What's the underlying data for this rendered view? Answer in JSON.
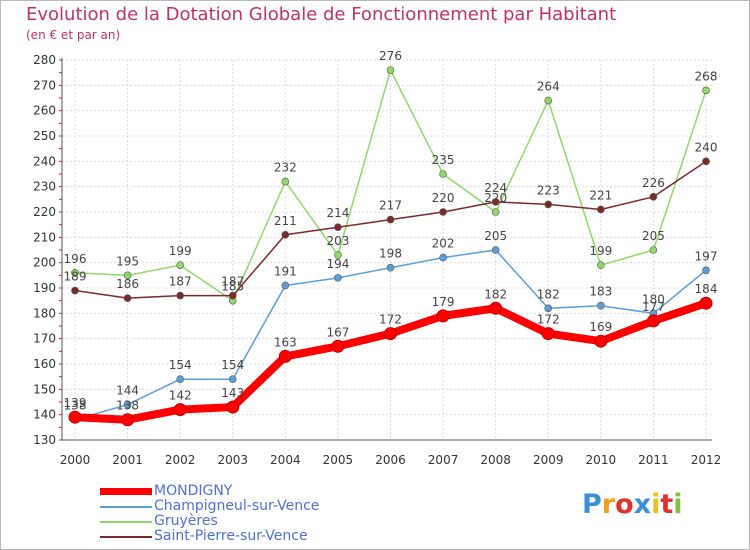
{
  "chart_data": {
    "type": "line",
    "title": "Evolution de la Dotation Globale de Fonctionnement par Habitant",
    "subtitle": "(en € et par an)",
    "x": [
      "2000",
      "2001",
      "2002",
      "2003",
      "2004",
      "2005",
      "2006",
      "2007",
      "2008",
      "2009",
      "2010",
      "2011",
      "2012"
    ],
    "ylim": [
      130,
      280
    ],
    "yticks": [
      130,
      140,
      150,
      160,
      170,
      180,
      190,
      200,
      210,
      220,
      230,
      240,
      250,
      260,
      270,
      280
    ],
    "grid": true,
    "legend_position": "bottom-left",
    "series": [
      {
        "name": "MONDIGNY",
        "color": "#ff0000",
        "values": [
          139,
          138,
          142,
          143,
          163,
          167,
          172,
          179,
          182,
          172,
          169,
          177,
          184
        ],
        "labels": [
          "139",
          "138",
          "142",
          "143",
          "163",
          "167",
          "172",
          "179",
          "182",
          "172",
          "169",
          "177",
          "184"
        ]
      },
      {
        "name": "Champigneul-sur-Vence",
        "color": "#5e9ed6",
        "values": [
          138,
          144,
          154,
          154,
          191,
          194,
          198,
          202,
          205,
          182,
          183,
          180,
          197
        ],
        "labels": [
          "138",
          "144",
          "154",
          "154",
          "191",
          "194",
          "198",
          "202",
          "205",
          "182",
          "183",
          "180",
          "197"
        ]
      },
      {
        "name": "Gruyères",
        "color": "#8fd86a",
        "values": [
          196,
          195,
          199,
          185,
          232,
          203,
          276,
          235,
          220,
          264,
          199,
          205,
          268
        ],
        "labels": [
          "196",
          "195",
          "199",
          "185",
          "232",
          "203",
          "276",
          "235",
          "220",
          "264",
          "199",
          "205",
          "268"
        ]
      },
      {
        "name": "Saint-Pierre-sur-Vence",
        "color": "#7a2a2a",
        "values": [
          189,
          186,
          187,
          187,
          211,
          214,
          217,
          220,
          224,
          223,
          221,
          226,
          240
        ],
        "labels": [
          "189",
          "186",
          "187",
          "187",
          "211",
          "214",
          "217",
          "220",
          "224",
          "223",
          "221",
          "226",
          "240"
        ]
      }
    ]
  },
  "logo": {
    "letters": [
      "P",
      "r",
      "o",
      "x",
      "i",
      "t",
      "i"
    ],
    "colors": [
      "#3a8fd9",
      "#f0a020",
      "#e03030",
      "#3a8fd9",
      "#f0c020",
      "#e03030",
      "#80c040"
    ]
  }
}
